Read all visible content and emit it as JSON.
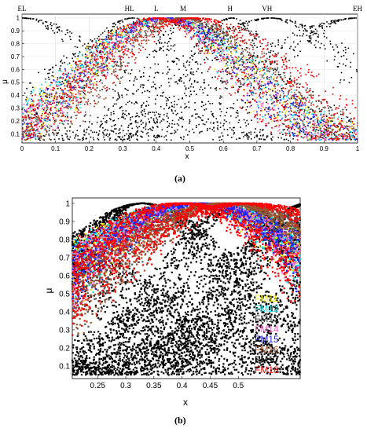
{
  "chart_data": [
    {
      "type": "scatter",
      "caption": "(a)",
      "xlabel": "x",
      "ylabel": "μ",
      "xlim": [
        0,
        1
      ],
      "ylim": [
        0.03,
        1.03
      ],
      "xticks": [
        0,
        0.1,
        0.2,
        0.3,
        0.4,
        0.5,
        0.6,
        0.7,
        0.8,
        0.9,
        1
      ],
      "xtick_labels": [
        "0",
        "0.1",
        "0.2",
        "0.3",
        "0.4",
        "0.5",
        "0.6",
        "0.7",
        "0.8",
        "0.9",
        "1"
      ],
      "yticks": [
        0.1,
        0.2,
        0.3,
        0.4,
        0.5,
        0.6,
        0.7,
        0.8,
        0.9,
        1
      ],
      "ytick_labels": [
        "0.1",
        "0.2",
        "0.3",
        "0.4",
        "0.5",
        "0.6",
        "0.7",
        "0.8",
        "0.9",
        "1"
      ],
      "grid": true,
      "term_labels": [
        {
          "text": "EL",
          "x": 0.0
        },
        {
          "text": "HL",
          "x": 0.32
        },
        {
          "text": "L",
          "x": 0.4
        },
        {
          "text": "M",
          "x": 0.48
        },
        {
          "text": "H",
          "x": 0.62
        },
        {
          "text": "VH",
          "x": 0.73
        },
        {
          "text": "EH",
          "x": 1.0
        }
      ],
      "black_curves": [
        {
          "mode": "gauss",
          "center": 0.0,
          "width": 0.25
        },
        {
          "mode": "gauss",
          "center": 0.33,
          "width": 0.15
        },
        {
          "mode": "gauss",
          "center": 0.415,
          "width": 0.27
        },
        {
          "mode": "gauss",
          "center": 0.5,
          "width": 0.12
        },
        {
          "mode": "gauss",
          "center": 0.625,
          "width": 0.12
        },
        {
          "mode": "gauss",
          "center": 0.74,
          "width": 0.25
        },
        {
          "mode": "gauss",
          "center": 1.0,
          "width": 0.3
        }
      ],
      "colored_curves": [
        {
          "name": "FM11",
          "color": "#e8e800",
          "center_range": [
            0.4,
            0.45
          ],
          "width_range": [
            0.17,
            0.3
          ]
        },
        {
          "name": "FM12",
          "color": "#00e5ee",
          "center_range": [
            0.4,
            0.45
          ],
          "width_range": [
            0.17,
            0.3
          ]
        },
        {
          "name": "FM13",
          "color": "#555555",
          "center_range": [
            0.46,
            0.5
          ],
          "width_range": [
            0.17,
            0.3
          ]
        },
        {
          "name": "FM14",
          "color": "#ff66cc",
          "center_range": [
            0.4,
            0.45
          ],
          "width_range": [
            0.17,
            0.28
          ]
        },
        {
          "name": "FM15",
          "color": "#2222ff",
          "center_range": [
            0.4,
            0.45
          ],
          "width_range": [
            0.17,
            0.28
          ]
        },
        {
          "name": "FM16",
          "color": "#a0522d",
          "center_range": [
            0.46,
            0.5
          ],
          "width_range": [
            0.17,
            0.28
          ]
        },
        {
          "name": "FM18",
          "color": "#ff0000",
          "center_range": [
            0.38,
            0.42
          ],
          "width_range": [
            0.16,
            0.26
          ]
        },
        {
          "name": "FM18",
          "color": "#ff0000",
          "center_range": [
            0.49,
            0.53
          ],
          "width_range": [
            0.2,
            0.34
          ]
        }
      ]
    },
    {
      "type": "scatter",
      "caption": "(b)",
      "xlabel": "x",
      "ylabel": "μ",
      "xlim": [
        0.205,
        0.61
      ],
      "ylim": [
        0.03,
        1.03
      ],
      "xticks": [
        0.25,
        0.3,
        0.35,
        0.4,
        0.45,
        0.5
      ],
      "xtick_labels": [
        "0.25",
        "0.3",
        "0.35",
        "0.4",
        "0.45",
        "0.5"
      ],
      "yticks": [
        0.1,
        0.2,
        0.3,
        0.4,
        0.5,
        0.6,
        0.7,
        0.8,
        0.9,
        1
      ],
      "ytick_labels": [
        "0.1",
        "0.2",
        "0.3",
        "0.4",
        "0.5",
        "0.6",
        "0.7",
        "0.8",
        "0.9",
        "1"
      ],
      "grid": false,
      "legend": [
        {
          "name": "FM11",
          "color": "#e8e800"
        },
        {
          "name": "FM12",
          "color": "#00e5ee"
        },
        {
          "name": "FM13",
          "color": "#333333"
        },
        {
          "name": "FM14",
          "color": "#ff66cc"
        },
        {
          "name": "FM15",
          "color": "#2222ff"
        },
        {
          "name": "FM16",
          "color": "#a0522d"
        },
        {
          "name": "FM17",
          "color": "#000000"
        },
        {
          "name": "FM18",
          "color": "#ff0000"
        }
      ],
      "legend_placement": "bottom-right"
    }
  ]
}
